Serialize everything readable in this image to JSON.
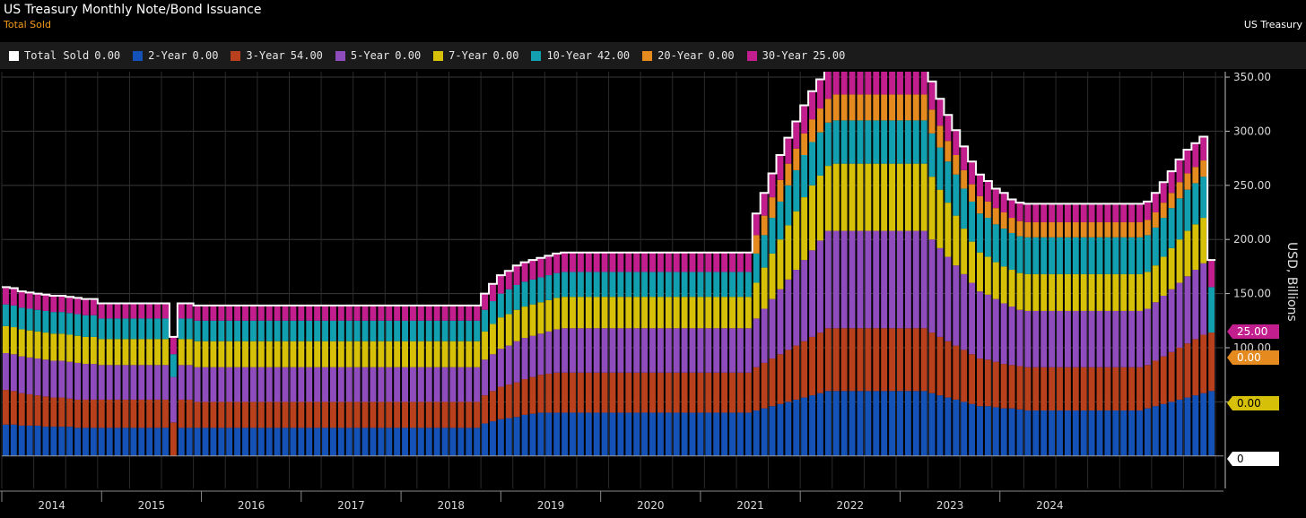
{
  "header": {
    "title": "US Treasury Monthly Note/Bond Issuance",
    "subtitle": "Total Sold",
    "source": "US Treasury"
  },
  "legend": [
    {
      "name": "Total Sold",
      "value": "0.00",
      "color": "#ffffff"
    },
    {
      "name": "2-Year",
      "value": "0.00",
      "color": "#1552b8"
    },
    {
      "name": "3-Year",
      "value": "54.00",
      "color": "#b8401c"
    },
    {
      "name": "5-Year",
      "value": "0.00",
      "color": "#8e4cbc"
    },
    {
      "name": "7-Year",
      "value": "0.00",
      "color": "#d6c008"
    },
    {
      "name": "10-Year",
      "value": "42.00",
      "color": "#12a0b0"
    },
    {
      "name": "20-Year",
      "value": "0.00",
      "color": "#e58a1e"
    },
    {
      "name": "30-Year",
      "value": "25.00",
      "color": "#c21e8e"
    }
  ],
  "tags": [
    {
      "text": "25.00",
      "value": 25,
      "color": "#c21e8e",
      "text_color": "#ffffff"
    },
    {
      "text": "0.00",
      "value": 0,
      "color": "#e58a1e",
      "text_color": "#ffffff",
      "note": "20-Year"
    },
    {
      "text": "0.00",
      "value": 0,
      "color": "#d6c008",
      "text_color": "#000000",
      "note": "7-Year"
    },
    {
      "text": "0",
      "value": 0,
      "color": "#ffffff",
      "text_color": "#000000",
      "note": "Total"
    }
  ],
  "chart_data": {
    "type": "bar",
    "stacked": true,
    "title": "US Treasury Monthly Note/Bond Issuance",
    "subtitle": "Total Sold",
    "ylabel": "USD, Billions",
    "ylim": [
      -30,
      355
    ],
    "yticks": [
      50,
      100,
      150,
      200,
      250,
      300,
      350
    ],
    "ytick_labels": [
      "50.00",
      "100.00",
      "150.00",
      "200.00",
      "250.00",
      "300.00",
      "350.00"
    ],
    "years": [
      "2014",
      "2015",
      "2016",
      "2017",
      "2018",
      "2019",
      "2020",
      "2021",
      "2022",
      "2023",
      "2024"
    ],
    "x_start": "2014-01",
    "segments": [
      {
        "year": "2014",
        "months": 12,
        "values": [
          29,
          27,
          13,
          34,
          25,
          18,
          0,
          13
        ]
      },
      {
        "year": "2015",
        "months": 9,
        "values": [
          26,
          26,
          13,
          32,
          24,
          16,
          0,
          11
        ]
      },
      {
        "year": "2015",
        "months": 1,
        "values": [
          0,
          31,
          0,
          42,
          0,
          21,
          0,
          16
        ]
      },
      {
        "year": "2015",
        "months": 2,
        "values": [
          26,
          26,
          13,
          32,
          24,
          16,
          0,
          11
        ]
      },
      {
        "year": "2016",
        "months": 12,
        "values": [
          26,
          24,
          13,
          32,
          24,
          16,
          0,
          11
        ]
      },
      {
        "year": "2017",
        "months": 10,
        "values": [
          26,
          24,
          13,
          32,
          24,
          16,
          0,
          11
        ]
      },
      {
        "year": "2018",
        "months": 14,
        "values": [
          36,
          34,
          18,
          32,
          24,
          16,
          0,
          14
        ]
      },
      {
        "year": "2019",
        "months": 14,
        "values": [
          40,
          37,
          20,
          33,
          25,
          18,
          0,
          15
        ]
      },
      {
        "year": "2020",
        "months": 18,
        "values": [
          60,
          52,
          26,
          34,
          39,
          20,
          20,
          18
        ]
      },
      {
        "year": "2022",
        "months": 16,
        "values": [
          45,
          42,
          22,
          33,
          33,
          23,
          15,
          11
        ]
      },
      {
        "year": "2023",
        "months": 6,
        "values": [
          42,
          41,
          20,
          32,
          30,
          23,
          14,
          10
        ]
      },
      {
        "year": "2023",
        "months": 6,
        "values": [
          52,
          48,
          24,
          34,
          32,
          24,
          16,
          12
        ]
      },
      {
        "year": "2024",
        "months": 1,
        "values": [
          0,
          54,
          0,
          0,
          0,
          42,
          0,
          25
        ]
      }
    ],
    "series": [
      {
        "name": "2-Year",
        "color": "#1552b8"
      },
      {
        "name": "3-Year",
        "color": "#b8401c"
      },
      {
        "name": "5-Year",
        "color": "#8e4cbc"
      },
      {
        "name": "7-Year",
        "color": "#d6c008"
      },
      {
        "name": "10-Year",
        "color": "#12a0b0"
      },
      {
        "name": "20-Year",
        "color": "#e58a1e"
      },
      {
        "name": "30-Year",
        "color": "#c21e8e"
      }
    ],
    "totals_line": {
      "name": "Total Sold",
      "color": "#ffffff"
    },
    "monthly": {
      "2-Year": [
        29,
        29,
        28,
        28,
        28,
        27,
        27,
        27,
        27,
        26,
        26,
        26,
        26,
        26,
        26,
        26,
        26,
        26,
        26,
        26,
        26,
        0,
        26,
        26,
        26,
        26,
        26,
        26,
        26,
        26,
        26,
        26,
        26,
        26,
        26,
        26,
        26,
        26,
        26,
        26,
        26,
        26,
        26,
        26,
        26,
        26,
        26,
        26,
        26,
        26,
        26,
        26,
        26,
        26,
        26,
        26,
        26,
        26,
        26,
        26,
        30,
        32,
        34,
        35,
        36,
        38,
        39,
        40,
        40,
        40,
        40,
        40,
        40,
        40,
        40,
        40,
        40,
        40,
        40,
        40,
        40,
        40,
        40,
        40,
        40,
        40,
        40,
        40,
        40,
        40,
        40,
        40,
        40,
        40,
        42,
        44,
        46,
        48,
        50,
        52,
        54,
        56,
        58,
        60,
        60,
        60,
        60,
        60,
        60,
        60,
        60,
        60,
        60,
        60,
        60,
        60,
        58,
        56,
        54,
        52,
        50,
        48,
        46,
        46,
        45,
        44,
        44,
        43,
        42,
        42,
        42,
        42,
        42,
        42,
        42,
        42,
        42,
        42,
        42,
        42,
        42,
        42,
        42,
        44,
        46,
        48,
        50,
        52,
        54,
        56,
        58,
        60,
        0
      ],
      "3-Year": [
        32,
        31,
        30,
        29,
        28,
        28,
        27,
        27,
        26,
        26,
        26,
        26,
        26,
        26,
        26,
        26,
        26,
        26,
        26,
        26,
        26,
        31,
        26,
        26,
        24,
        24,
        24,
        24,
        24,
        24,
        24,
        24,
        24,
        24,
        24,
        24,
        24,
        24,
        24,
        24,
        24,
        24,
        24,
        24,
        24,
        24,
        24,
        24,
        24,
        24,
        24,
        24,
        24,
        24,
        24,
        24,
        24,
        24,
        24,
        24,
        26,
        28,
        30,
        31,
        32,
        33,
        34,
        35,
        36,
        37,
        37,
        37,
        37,
        37,
        37,
        37,
        37,
        37,
        37,
        37,
        37,
        37,
        37,
        37,
        37,
        37,
        37,
        37,
        37,
        37,
        37,
        37,
        37,
        37,
        40,
        42,
        44,
        46,
        48,
        50,
        52,
        54,
        56,
        58,
        58,
        58,
        58,
        58,
        58,
        58,
        58,
        58,
        58,
        58,
        58,
        58,
        56,
        54,
        52,
        50,
        48,
        46,
        44,
        43,
        42,
        41,
        40,
        40,
        40,
        40,
        40,
        40,
        40,
        40,
        40,
        40,
        40,
        40,
        40,
        40,
        40,
        40,
        40,
        40,
        42,
        44,
        46,
        48,
        50,
        52,
        54,
        54
      ],
      "5-Year": [
        34,
        34,
        34,
        34,
        34,
        34,
        34,
        34,
        34,
        34,
        33,
        33,
        32,
        32,
        32,
        32,
        32,
        32,
        32,
        32,
        32,
        42,
        32,
        32,
        32,
        32,
        32,
        32,
        32,
        32,
        32,
        32,
        32,
        32,
        32,
        32,
        32,
        32,
        32,
        32,
        32,
        32,
        32,
        32,
        32,
        32,
        32,
        32,
        32,
        32,
        32,
        32,
        32,
        32,
        32,
        32,
        32,
        32,
        32,
        32,
        33,
        34,
        35,
        36,
        38,
        38,
        38,
        38,
        39,
        40,
        41,
        41,
        41,
        41,
        41,
        41,
        41,
        41,
        41,
        41,
        41,
        41,
        41,
        41,
        41,
        41,
        41,
        41,
        41,
        41,
        41,
        41,
        41,
        41,
        45,
        50,
        55,
        60,
        65,
        70,
        75,
        80,
        85,
        90,
        90,
        90,
        90,
        90,
        90,
        90,
        90,
        90,
        90,
        90,
        90,
        90,
        86,
        82,
        78,
        74,
        70,
        66,
        62,
        60,
        58,
        56,
        54,
        52,
        52,
        52,
        52,
        52,
        52,
        52,
        52,
        52,
        52,
        52,
        52,
        52,
        52,
        52,
        52,
        52,
        54,
        56,
        58,
        60,
        62,
        64,
        66,
        0
      ],
      "7-Year": [
        25,
        25,
        25,
        25,
        25,
        25,
        25,
        25,
        25,
        25,
        25,
        25,
        24,
        24,
        24,
        24,
        24,
        24,
        24,
        24,
        24,
        0,
        24,
        24,
        24,
        24,
        24,
        24,
        24,
        24,
        24,
        24,
        24,
        24,
        24,
        24,
        24,
        24,
        24,
        24,
        24,
        24,
        24,
        24,
        24,
        24,
        24,
        24,
        24,
        24,
        24,
        24,
        24,
        24,
        24,
        24,
        24,
        24,
        24,
        24,
        26,
        28,
        29,
        29,
        29,
        29,
        29,
        29,
        29,
        29,
        29,
        29,
        29,
        29,
        29,
        29,
        29,
        29,
        29,
        29,
        29,
        29,
        29,
        29,
        29,
        29,
        29,
        29,
        29,
        29,
        29,
        29,
        29,
        29,
        33,
        38,
        42,
        46,
        50,
        54,
        58,
        60,
        60,
        60,
        62,
        62,
        62,
        62,
        62,
        62,
        62,
        62,
        62,
        62,
        62,
        62,
        58,
        54,
        50,
        46,
        42,
        38,
        36,
        35,
        34,
        34,
        34,
        34,
        34,
        34,
        34,
        34,
        34,
        34,
        34,
        34,
        34,
        34,
        34,
        34,
        34,
        34,
        34,
        34,
        34,
        36,
        38,
        40,
        42,
        42,
        42,
        0
      ],
      "10-Year": [
        20,
        20,
        20,
        20,
        20,
        20,
        20,
        20,
        20,
        20,
        20,
        20,
        19,
        19,
        19,
        19,
        19,
        19,
        19,
        19,
        19,
        21,
        19,
        19,
        19,
        19,
        19,
        19,
        19,
        19,
        19,
        19,
        19,
        19,
        19,
        19,
        19,
        19,
        19,
        19,
        19,
        19,
        19,
        19,
        19,
        19,
        19,
        19,
        19,
        19,
        19,
        19,
        19,
        19,
        19,
        19,
        19,
        19,
        19,
        19,
        20,
        21,
        22,
        23,
        23,
        23,
        23,
        23,
        23,
        23,
        23,
        23,
        23,
        23,
        23,
        23,
        23,
        23,
        23,
        23,
        23,
        23,
        23,
        23,
        23,
        23,
        23,
        23,
        23,
        23,
        23,
        23,
        23,
        23,
        27,
        30,
        33,
        35,
        37,
        38,
        39,
        40,
        40,
        40,
        40,
        40,
        40,
        40,
        40,
        40,
        40,
        40,
        40,
        40,
        40,
        40,
        40,
        39,
        38,
        38,
        37,
        37,
        36,
        36,
        35,
        35,
        34,
        34,
        34,
        34,
        34,
        34,
        34,
        34,
        34,
        34,
        34,
        34,
        34,
        34,
        34,
        34,
        34,
        34,
        35,
        36,
        37,
        38,
        38,
        38,
        38,
        42
      ],
      "20-Year": [
        0,
        0,
        0,
        0,
        0,
        0,
        0,
        0,
        0,
        0,
        0,
        0,
        0,
        0,
        0,
        0,
        0,
        0,
        0,
        0,
        0,
        0,
        0,
        0,
        0,
        0,
        0,
        0,
        0,
        0,
        0,
        0,
        0,
        0,
        0,
        0,
        0,
        0,
        0,
        0,
        0,
        0,
        0,
        0,
        0,
        0,
        0,
        0,
        0,
        0,
        0,
        0,
        0,
        0,
        0,
        0,
        0,
        0,
        0,
        0,
        0,
        0,
        0,
        0,
        0,
        0,
        0,
        0,
        0,
        0,
        0,
        0,
        0,
        0,
        0,
        0,
        0,
        0,
        0,
        0,
        0,
        0,
        0,
        0,
        0,
        0,
        0,
        0,
        0,
        0,
        0,
        0,
        0,
        0,
        17,
        18,
        19,
        20,
        20,
        20,
        20,
        21,
        22,
        22,
        24,
        24,
        24,
        24,
        24,
        24,
        24,
        24,
        24,
        24,
        24,
        24,
        22,
        20,
        19,
        18,
        17,
        16,
        16,
        15,
        15,
        15,
        14,
        14,
        14,
        14,
        14,
        14,
        14,
        14,
        14,
        14,
        14,
        14,
        14,
        14,
        14,
        14,
        14,
        14,
        14,
        14,
        14,
        15,
        15,
        15,
        15,
        0
      ],
      "30-Year": [
        16,
        16,
        15,
        15,
        15,
        15,
        15,
        15,
        15,
        15,
        15,
        15,
        14,
        14,
        14,
        14,
        14,
        14,
        14,
        14,
        14,
        16,
        14,
        14,
        14,
        14,
        14,
        14,
        14,
        14,
        14,
        14,
        14,
        14,
        14,
        14,
        14,
        14,
        14,
        14,
        14,
        14,
        14,
        14,
        14,
        14,
        14,
        14,
        14,
        14,
        14,
        14,
        14,
        14,
        14,
        14,
        14,
        14,
        14,
        14,
        15,
        16,
        17,
        17,
        18,
        18,
        18,
        18,
        18,
        18,
        18,
        18,
        18,
        18,
        18,
        18,
        18,
        18,
        18,
        18,
        18,
        18,
        18,
        18,
        18,
        18,
        18,
        18,
        18,
        18,
        18,
        18,
        18,
        18,
        20,
        21,
        22,
        23,
        24,
        25,
        26,
        26,
        27,
        27,
        27,
        27,
        27,
        27,
        27,
        27,
        27,
        27,
        27,
        27,
        27,
        27,
        26,
        25,
        24,
        23,
        22,
        21,
        20,
        19,
        18,
        18,
        17,
        17,
        17,
        17,
        17,
        17,
        17,
        17,
        17,
        17,
        17,
        17,
        17,
        17,
        17,
        17,
        17,
        17,
        18,
        19,
        20,
        21,
        22,
        22,
        22,
        25
      ]
    }
  }
}
